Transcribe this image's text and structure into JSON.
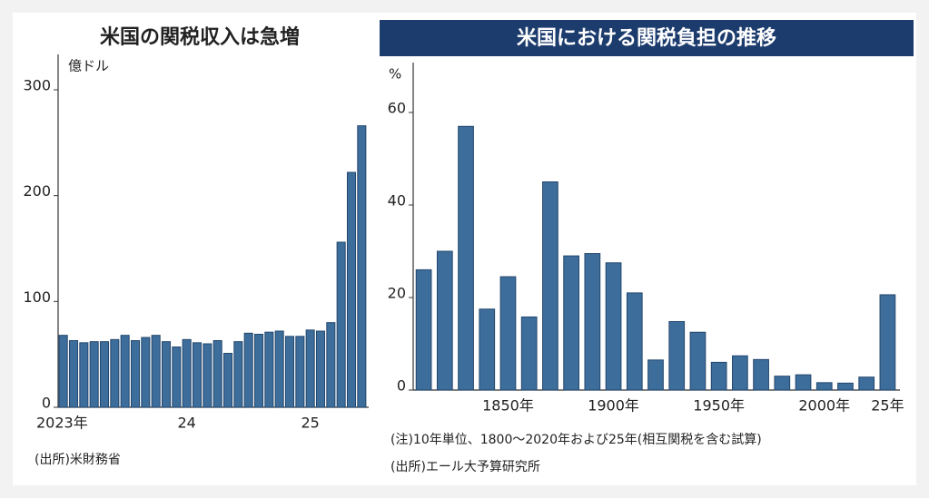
{
  "chart_data": [
    {
      "type": "bar",
      "title": "米国の関税収入は急増",
      "y_label": "億ドル",
      "source": "(出所)米財務省",
      "categories": [
        "2023年",
        null,
        null,
        null,
        null,
        null,
        null,
        null,
        null,
        null,
        null,
        null,
        "24",
        null,
        null,
        null,
        null,
        null,
        null,
        null,
        null,
        null,
        null,
        null,
        "25",
        null,
        null,
        null,
        null,
        null
      ],
      "values": [
        68,
        63,
        61,
        62,
        62,
        64,
        68,
        63,
        66,
        68,
        62,
        57,
        64,
        61,
        60,
        63,
        51,
        62,
        70,
        69,
        71,
        72,
        67,
        67,
        73,
        72,
        80,
        156,
        222,
        266
      ],
      "color": "#3d6d9b",
      "ylim": [
        0,
        330
      ],
      "yticks": [
        0,
        100,
        200,
        300
      ]
    },
    {
      "type": "bar",
      "title": "米国における関税負担の推移",
      "y_label": "%",
      "note": "(注)10年単位、1800～2020年および25年(相互関税を含む試算)",
      "source": "(出所)エール大予算研究所",
      "categories": [
        null,
        null,
        null,
        null,
        "1850年",
        null,
        null,
        null,
        null,
        "1900年",
        null,
        null,
        null,
        null,
        "1950年",
        null,
        null,
        null,
        null,
        "2000年",
        null,
        null,
        "25年"
      ],
      "values": [
        26,
        30,
        57,
        17.5,
        24.5,
        15.8,
        45,
        29,
        29.5,
        27.5,
        21,
        6.5,
        14.8,
        12.5,
        6,
        7.4,
        6.6,
        3,
        3.3,
        1.6,
        1.5,
        2.8,
        20.6
      ],
      "color": "#3d6d9b",
      "ylim": [
        0,
        70
      ],
      "yticks": [
        0,
        20,
        40,
        60
      ]
    }
  ]
}
